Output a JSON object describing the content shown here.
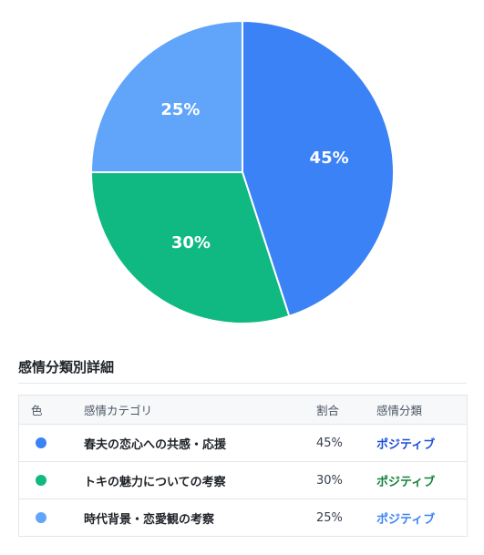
{
  "chart_data": {
    "type": "pie",
    "slices": [
      {
        "label": "45%",
        "value": 45,
        "color": "#3b82f6"
      },
      {
        "label": "30%",
        "value": 30,
        "color": "#10b981"
      },
      {
        "label": "25%",
        "value": 25,
        "color": "#60a5fa"
      }
    ],
    "start_angle_deg": 0,
    "direction": "clockwise",
    "slice_border_color": "#ffffff"
  },
  "details": {
    "title": "感情分類別詳細",
    "columns": [
      "色",
      "感情カテゴリ",
      "割合",
      "感情分類"
    ],
    "rows": [
      {
        "color": "#3b82f6",
        "category": "春夫の恋心への共感・応援",
        "ratio": "45%",
        "classification": "ポジティブ",
        "class_color": "#1d4ed8"
      },
      {
        "color": "#10b981",
        "category": "トキの魅力についての考察",
        "ratio": "30%",
        "classification": "ポジティブ",
        "class_color": "#15803d"
      },
      {
        "color": "#60a5fa",
        "category": "時代背景・恋愛観の考察",
        "ratio": "25%",
        "classification": "ポジティブ",
        "class_color": "#3b82f6"
      }
    ]
  }
}
